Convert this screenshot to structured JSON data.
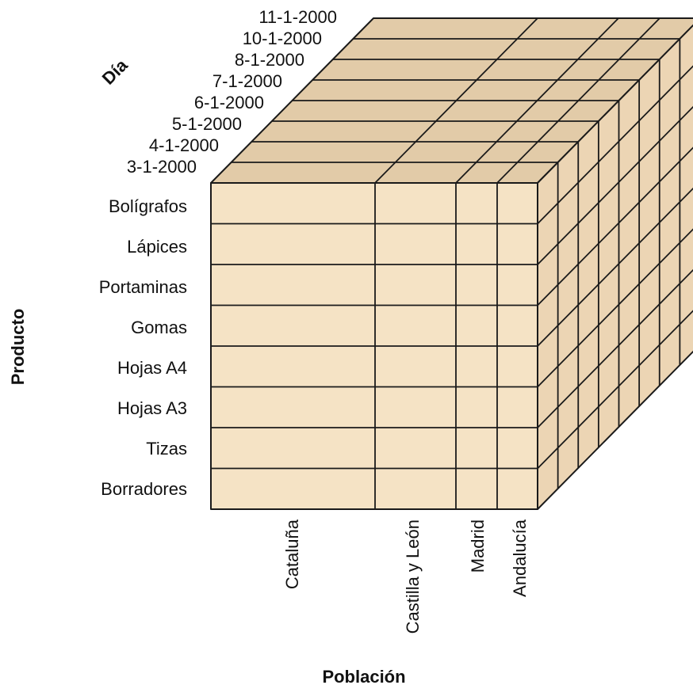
{
  "axes": {
    "day_title": "Día",
    "product_title": "Producto",
    "population_title": "Población"
  },
  "days": [
    "3-1-2000",
    "4-1-2000",
    "5-1-2000",
    "6-1-2000",
    "7-1-2000",
    "8-1-2000",
    "10-1-2000",
    "11-1-2000"
  ],
  "products": [
    "Bolígrafos",
    "Lápices",
    "Portaminas",
    "Gomas",
    "Hojas A4",
    "Hojas A3",
    "Tizas",
    "Borradores"
  ],
  "populations": [
    "Cataluña",
    "Castilla y León",
    "Madrid",
    "Andalucía"
  ],
  "colors": {
    "front_face": "#f5e3c5",
    "top_face": "#e2cba8",
    "side_face": "#ecd5b4",
    "edge": "#1a1a1a"
  }
}
